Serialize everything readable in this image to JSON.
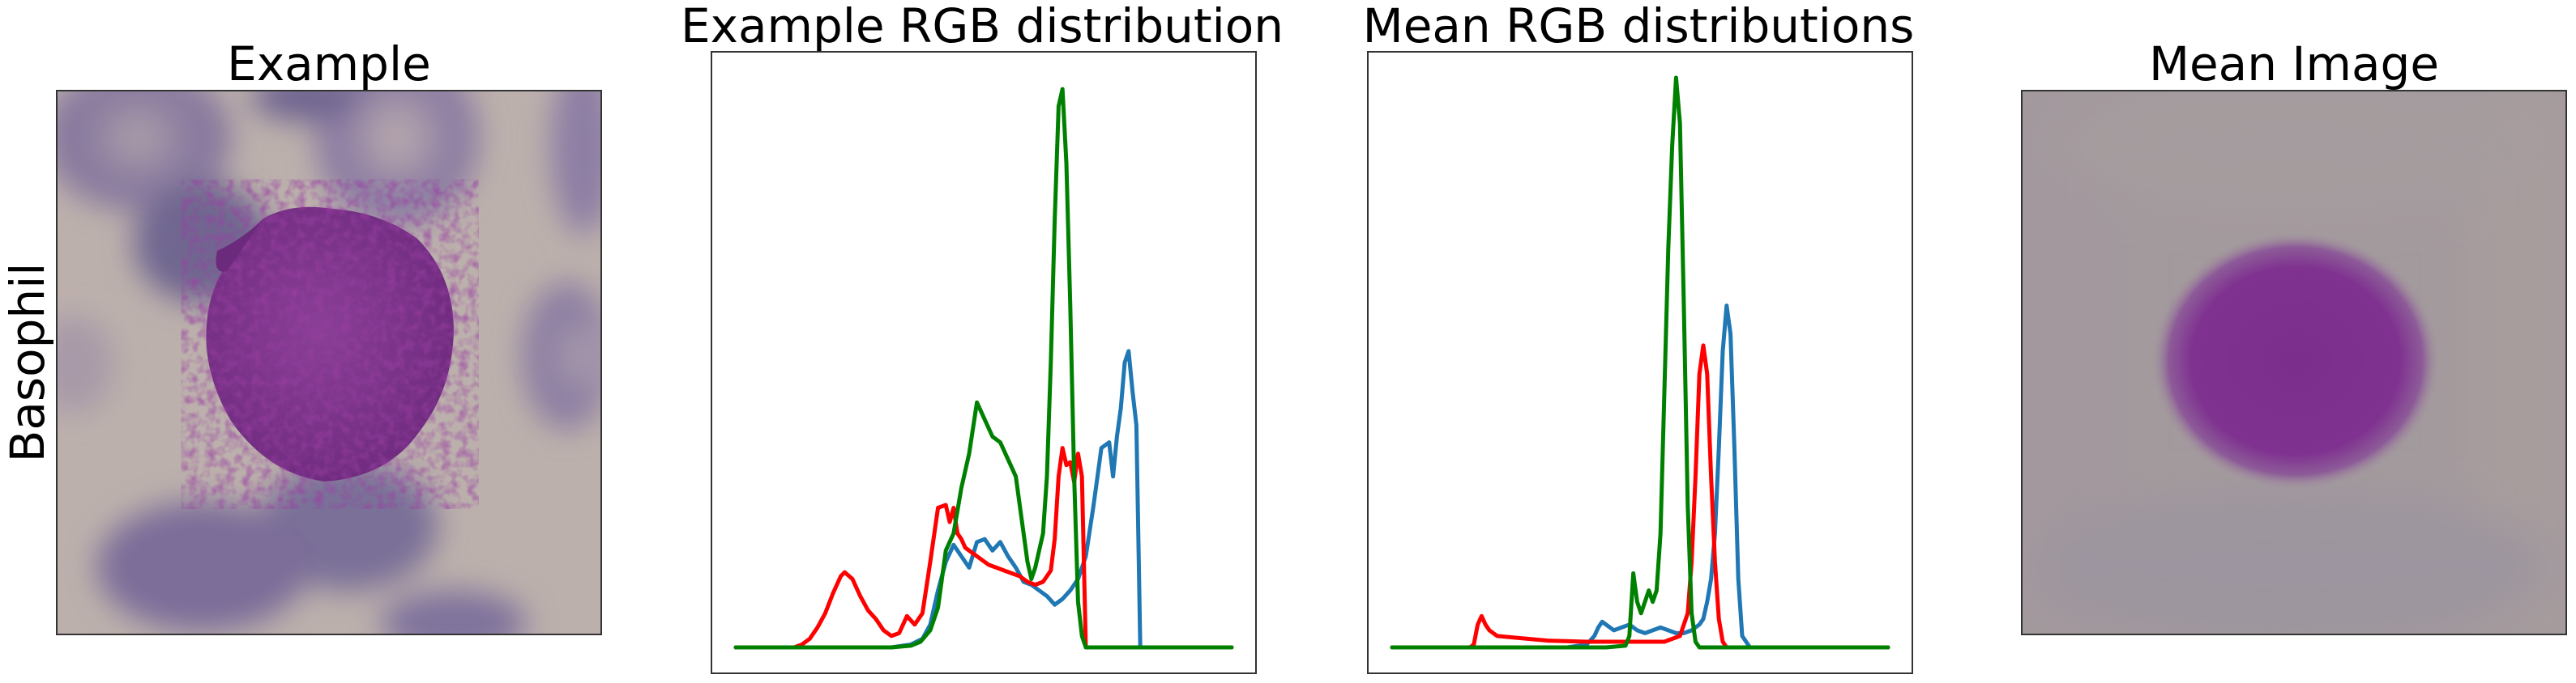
{
  "row_label": "Basophil",
  "colors": {
    "red": "#ff0000",
    "green": "#008000",
    "blue": "#1f77b4"
  },
  "panels": {
    "example_image": {
      "title": "Example"
    },
    "mean_image": {
      "title": "Mean Image"
    }
  },
  "chart_data": [
    {
      "type": "line",
      "title": "Example RGB distribution",
      "xlim": [
        0,
        255
      ],
      "ylim": [
        0,
        1
      ],
      "grid": false,
      "ticks": "hidden",
      "series": [
        {
          "color": "red",
          "x": [
            0,
            30,
            34,
            38,
            42,
            46,
            50,
            54,
            56,
            60,
            64,
            68,
            72,
            76,
            80,
            84,
            88,
            92,
            96,
            100,
            104,
            108,
            110,
            112,
            114,
            116,
            118,
            120,
            122,
            124,
            126,
            128,
            130,
            134,
            138,
            142,
            146,
            150,
            154,
            158,
            160,
            162,
            164,
            166,
            168,
            170,
            172,
            174,
            176,
            178,
            180,
            184,
            188,
            192,
            200,
            255
          ],
          "y": [
            0,
            0,
            0.005,
            0.015,
            0.035,
            0.06,
            0.095,
            0.125,
            0.132,
            0.12,
            0.09,
            0.065,
            0.05,
            0.03,
            0.02,
            0.025,
            0.055,
            0.04,
            0.06,
            0.15,
            0.245,
            0.25,
            0.22,
            0.245,
            0.2,
            0.19,
            0.175,
            0.17,
            0.165,
            0.16,
            0.155,
            0.15,
            0.145,
            0.14,
            0.135,
            0.13,
            0.125,
            0.115,
            0.11,
            0.115,
            0.125,
            0.135,
            0.19,
            0.3,
            0.35,
            0.32,
            0.325,
            0.29,
            0.34,
            0.3,
            0.0,
            0.0,
            0.0,
            0.0,
            0.0,
            0.0
          ]
        },
        {
          "color": "blue",
          "x": [
            0,
            60,
            80,
            90,
            96,
            100,
            104,
            108,
            112,
            116,
            120,
            124,
            128,
            132,
            136,
            140,
            144,
            148,
            152,
            156,
            160,
            164,
            168,
            172,
            176,
            180,
            184,
            188,
            192,
            194,
            196,
            198,
            200,
            202,
            204,
            206,
            208,
            210,
            212,
            255
          ],
          "y": [
            0,
            0,
            0,
            0.005,
            0.015,
            0.04,
            0.1,
            0.15,
            0.18,
            0.16,
            0.14,
            0.185,
            0.19,
            0.17,
            0.185,
            0.16,
            0.14,
            0.115,
            0.11,
            0.1,
            0.09,
            0.075,
            0.085,
            0.1,
            0.12,
            0.16,
            0.25,
            0.35,
            0.36,
            0.3,
            0.37,
            0.42,
            0.5,
            0.52,
            0.45,
            0.39,
            0.0,
            0.0,
            0.0,
            0.0
          ]
        },
        {
          "color": "green",
          "x": [
            0,
            80,
            90,
            95,
            100,
            104,
            108,
            112,
            116,
            120,
            124,
            128,
            132,
            136,
            140,
            144,
            148,
            150,
            152,
            154,
            156,
            158,
            160,
            162,
            164,
            166,
            168,
            170,
            172,
            174,
            176,
            178,
            180,
            255
          ],
          "y": [
            0,
            0,
            0.003,
            0.01,
            0.03,
            0.07,
            0.17,
            0.2,
            0.28,
            0.34,
            0.43,
            0.4,
            0.37,
            0.36,
            0.33,
            0.3,
            0.2,
            0.15,
            0.12,
            0.14,
            0.17,
            0.2,
            0.3,
            0.5,
            0.75,
            0.95,
            0.98,
            0.85,
            0.6,
            0.3,
            0.08,
            0.02,
            0.0,
            0.0
          ]
        }
      ]
    },
    {
      "type": "line",
      "title": "Mean RGB distributions",
      "xlim": [
        0,
        255
      ],
      "ylim": [
        0,
        1
      ],
      "grid": false,
      "ticks": "hidden",
      "series": [
        {
          "color": "red",
          "x": [
            0,
            40,
            42,
            44,
            46,
            48,
            50,
            54,
            60,
            80,
            100,
            120,
            140,
            148,
            152,
            154,
            156,
            158,
            160,
            162,
            164,
            166,
            168,
            170,
            172,
            174,
            176,
            178,
            180,
            255
          ],
          "y": [
            0,
            0,
            0.005,
            0.04,
            0.055,
            0.04,
            0.03,
            0.02,
            0.018,
            0.012,
            0.01,
            0.01,
            0.01,
            0.02,
            0.06,
            0.15,
            0.3,
            0.48,
            0.53,
            0.48,
            0.3,
            0.15,
            0.05,
            0.01,
            0.0,
            0.0,
            0.0,
            0.0,
            0.0,
            0.0
          ]
        },
        {
          "color": "blue",
          "x": [
            0,
            90,
            100,
            104,
            106,
            108,
            110,
            114,
            118,
            122,
            126,
            130,
            134,
            138,
            142,
            146,
            150,
            154,
            158,
            160,
            162,
            164,
            166,
            168,
            170,
            172,
            174,
            176,
            178,
            180,
            184,
            255
          ],
          "y": [
            0,
            0,
            0.005,
            0.02,
            0.035,
            0.045,
            0.04,
            0.03,
            0.035,
            0.04,
            0.03,
            0.025,
            0.03,
            0.035,
            0.03,
            0.025,
            0.025,
            0.03,
            0.04,
            0.05,
            0.08,
            0.12,
            0.2,
            0.35,
            0.52,
            0.6,
            0.55,
            0.35,
            0.12,
            0.02,
            0.0,
            0.0
          ]
        },
        {
          "color": "green",
          "x": [
            0,
            110,
            120,
            122,
            124,
            126,
            128,
            130,
            132,
            134,
            136,
            138,
            140,
            142,
            144,
            146,
            148,
            150,
            152,
            154,
            156,
            158,
            160,
            162,
            255
          ],
          "y": [
            0,
            0,
            0.003,
            0.02,
            0.13,
            0.08,
            0.06,
            0.08,
            0.1,
            0.08,
            0.1,
            0.2,
            0.45,
            0.7,
            0.88,
            1.0,
            0.92,
            0.6,
            0.25,
            0.06,
            0.01,
            0.0,
            0.0,
            0.0,
            0.0
          ]
        }
      ]
    }
  ]
}
